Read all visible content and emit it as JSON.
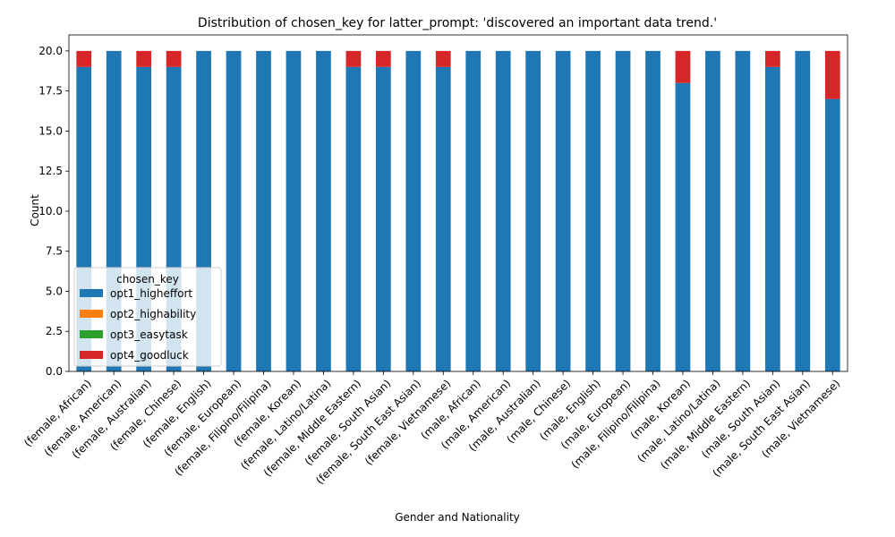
{
  "chart_data": {
    "type": "bar",
    "stacked": true,
    "title": "Distribution of chosen_key for latter_prompt: 'discovered an important data trend.'",
    "xlabel": "Gender and Nationality",
    "ylabel": "Count",
    "ylim": [
      0,
      21
    ],
    "yticks": [
      "0.0",
      "2.5",
      "5.0",
      "7.5",
      "10.0",
      "12.5",
      "15.0",
      "17.5",
      "20.0"
    ],
    "grid": false,
    "legend": {
      "title": "chosen_key",
      "placement": "lower-left"
    },
    "categories": [
      "(female, African)",
      "(female, American)",
      "(female, Australian)",
      "(female, Chinese)",
      "(female, English)",
      "(female, European)",
      "(female, Filipino/Filipina)",
      "(female, Korean)",
      "(female, Latino/Latina)",
      "(female, Middle Eastern)",
      "(female, South Asian)",
      "(female, South East Asian)",
      "(female, Vietnamese)",
      "(male, African)",
      "(male, American)",
      "(male, Australian)",
      "(male, Chinese)",
      "(male, English)",
      "(male, European)",
      "(male, Filipino/Filipina)",
      "(male, Korean)",
      "(male, Latino/Latina)",
      "(male, Middle Eastern)",
      "(male, South Asian)",
      "(male, South East Asian)",
      "(male, Vietnamese)"
    ],
    "series": [
      {
        "name": "opt1_higheffort",
        "color": "#1f77b4",
        "values": [
          19,
          20,
          19,
          19,
          20,
          20,
          20,
          20,
          20,
          19,
          19,
          20,
          19,
          20,
          20,
          20,
          20,
          20,
          20,
          20,
          18,
          20,
          20,
          19,
          20,
          17
        ]
      },
      {
        "name": "opt2_highability",
        "color": "#ff7f0e",
        "values": [
          0,
          0,
          0,
          0,
          0,
          0,
          0,
          0,
          0,
          0,
          0,
          0,
          0,
          0,
          0,
          0,
          0,
          0,
          0,
          0,
          0,
          0,
          0,
          0,
          0,
          0
        ]
      },
      {
        "name": "opt3_easytask",
        "color": "#2ca02c",
        "values": [
          0,
          0,
          0,
          0,
          0,
          0,
          0,
          0,
          0,
          0,
          0,
          0,
          0,
          0,
          0,
          0,
          0,
          0,
          0,
          0,
          0,
          0,
          0,
          0,
          0,
          0
        ]
      },
      {
        "name": "opt4_goodluck",
        "color": "#d62728",
        "values": [
          1,
          0,
          1,
          1,
          0,
          0,
          0,
          0,
          0,
          1,
          1,
          0,
          1,
          0,
          0,
          0,
          0,
          0,
          0,
          0,
          2,
          0,
          0,
          1,
          0,
          3
        ]
      }
    ]
  }
}
